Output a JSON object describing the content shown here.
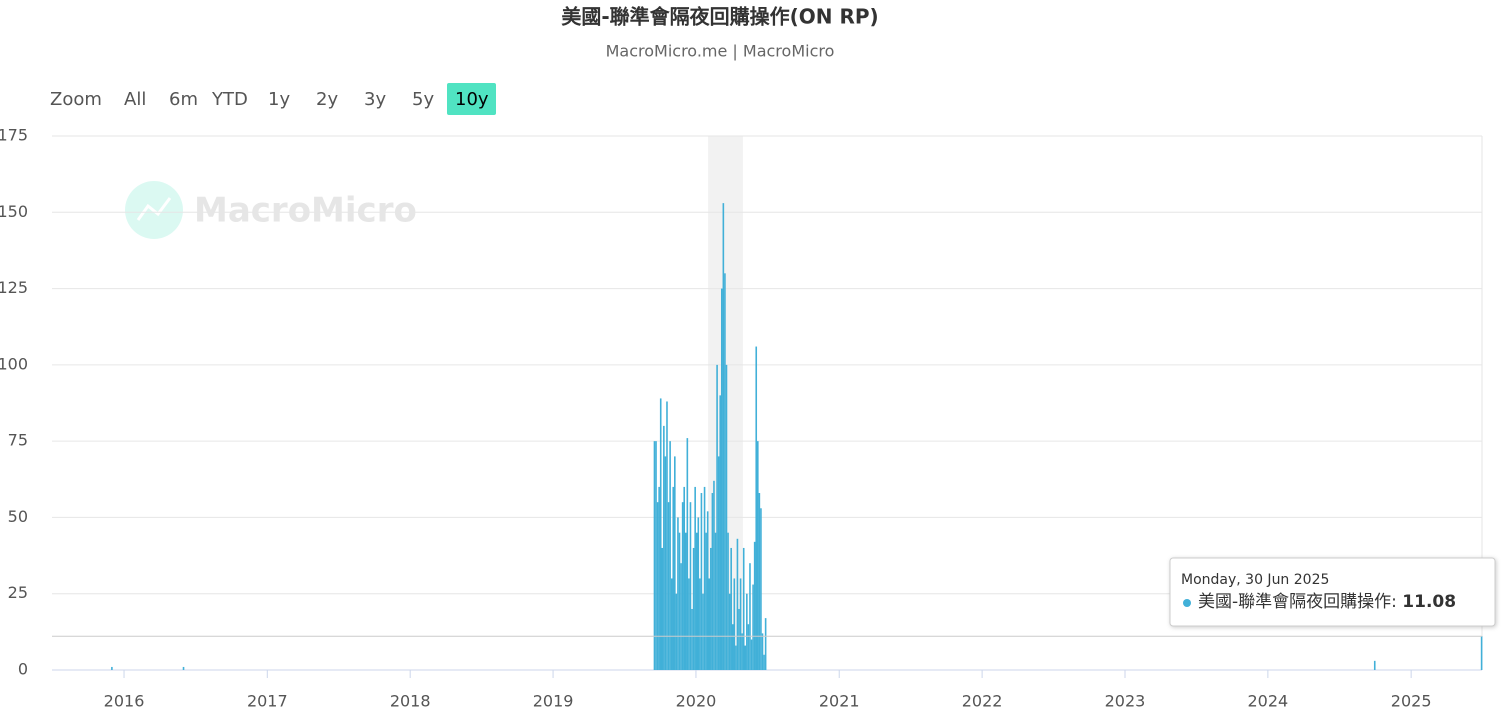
{
  "chart_data": {
    "type": "bar",
    "title": "美國-聯準會隔夜回購操作(ON RP)",
    "subtitle": "MacroMicro.me | MacroMicro",
    "watermark": "MacroMicro",
    "range_selector": {
      "label": "Zoom",
      "buttons": [
        "All",
        "6m",
        "YTD",
        "1y",
        "2y",
        "3y",
        "5y",
        "10y"
      ],
      "selected": 7
    },
    "color": "#41b0d8",
    "grid": true,
    "recession_band": [
      "2020-02-01",
      "2020-04-30"
    ],
    "xlim": [
      "2015-07-01",
      "2025-07-01"
    ],
    "xticks": [
      {
        "value": "2016-01-01",
        "label": "2016"
      },
      {
        "value": "2017-01-01",
        "label": "2017"
      },
      {
        "value": "2018-01-01",
        "label": "2018"
      },
      {
        "value": "2019-01-01",
        "label": "2019"
      },
      {
        "value": "2020-01-01",
        "label": "2020"
      },
      {
        "value": "2021-01-01",
        "label": "2021"
      },
      {
        "value": "2022-01-01",
        "label": "2022"
      },
      {
        "value": "2023-01-01",
        "label": "2023"
      },
      {
        "value": "2024-01-01",
        "label": "2024"
      },
      {
        "value": "2025-01-01",
        "label": "2025"
      }
    ],
    "ylim": [
      0,
      175
    ],
    "yticks": [
      0,
      25,
      50,
      75,
      100,
      125,
      150,
      175
    ],
    "x": [
      "2015-12-01",
      "2016-06-01",
      "2019-09-17",
      "2019-09-21",
      "2019-09-25",
      "2019-09-29",
      "2019-10-03",
      "2019-10-07",
      "2019-10-11",
      "2019-10-15",
      "2019-10-19",
      "2019-10-23",
      "2019-10-27",
      "2019-10-31",
      "2019-11-04",
      "2019-11-08",
      "2019-11-12",
      "2019-11-16",
      "2019-11-20",
      "2019-11-24",
      "2019-11-28",
      "2019-12-02",
      "2019-12-06",
      "2019-12-10",
      "2019-12-14",
      "2019-12-18",
      "2019-12-22",
      "2019-12-26",
      "2019-12-30",
      "2020-01-03",
      "2020-01-07",
      "2020-01-11",
      "2020-01-15",
      "2020-01-19",
      "2020-01-23",
      "2020-01-27",
      "2020-01-31",
      "2020-02-04",
      "2020-02-08",
      "2020-02-12",
      "2020-02-16",
      "2020-02-20",
      "2020-02-24",
      "2020-02-28",
      "2020-03-03",
      "2020-03-07",
      "2020-03-11",
      "2020-03-15",
      "2020-03-19",
      "2020-03-23",
      "2020-03-27",
      "2020-03-31",
      "2020-04-04",
      "2020-04-08",
      "2020-04-12",
      "2020-04-16",
      "2020-04-20",
      "2020-04-24",
      "2020-04-28",
      "2020-05-02",
      "2020-05-06",
      "2020-05-10",
      "2020-05-14",
      "2020-05-18",
      "2020-05-22",
      "2020-05-26",
      "2020-05-30",
      "2020-06-03",
      "2020-06-07",
      "2020-06-11",
      "2020-06-15",
      "2020-06-19",
      "2020-06-23",
      "2020-06-27",
      "2024-09-30",
      "2025-06-30"
    ],
    "series": [
      {
        "name": "美國-聯準會隔夜回購操作",
        "color": "#41b0d8",
        "values": [
          1,
          1,
          75,
          75,
          55,
          60,
          89,
          40,
          80,
          70,
          88,
          55,
          75,
          30,
          60,
          70,
          25,
          50,
          45,
          35,
          55,
          60,
          45,
          76,
          30,
          55,
          20,
          40,
          60,
          45,
          50,
          30,
          58,
          25,
          60,
          45,
          52,
          30,
          40,
          58,
          62,
          45,
          100,
          70,
          90,
          125,
          153,
          130,
          100,
          45,
          25,
          40,
          15,
          30,
          8,
          43,
          20,
          30,
          12,
          40,
          8,
          25,
          15,
          35,
          10,
          28,
          42,
          106,
          75,
          58,
          53,
          12,
          5,
          17,
          3,
          11.08
        ]
      }
    ],
    "tooltip": {
      "date": "Monday, 30 Jun 2025",
      "series": "美國-聯準會隔夜回購操作",
      "value": 11.08
    }
  }
}
